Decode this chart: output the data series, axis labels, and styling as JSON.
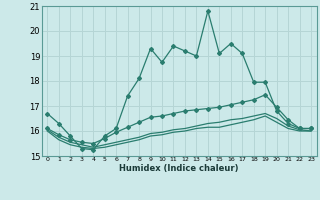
{
  "xlabel": "Humidex (Indice chaleur)",
  "xlim": [
    -0.5,
    23.5
  ],
  "ylim": [
    15,
    21
  ],
  "yticks": [
    15,
    16,
    17,
    18,
    19,
    20,
    21
  ],
  "xticks": [
    0,
    1,
    2,
    3,
    4,
    5,
    6,
    7,
    8,
    9,
    10,
    11,
    12,
    13,
    14,
    15,
    16,
    17,
    18,
    19,
    20,
    21,
    22,
    23
  ],
  "background_color": "#cce9e9",
  "grid_color": "#b5d5d5",
  "line_color": "#2a7d6f",
  "line1": [
    16.7,
    16.3,
    15.8,
    15.3,
    15.25,
    15.8,
    16.1,
    17.4,
    18.1,
    19.3,
    18.75,
    19.4,
    19.2,
    19.0,
    20.8,
    19.1,
    19.5,
    19.1,
    17.95,
    17.95,
    16.8,
    16.3,
    16.1,
    16.1
  ],
  "line2": [
    16.1,
    15.85,
    15.65,
    15.55,
    15.5,
    15.7,
    15.95,
    16.15,
    16.35,
    16.55,
    16.6,
    16.7,
    16.8,
    16.85,
    16.9,
    16.95,
    17.05,
    17.15,
    17.25,
    17.45,
    16.95,
    16.45,
    16.1,
    16.1
  ],
  "line3": [
    16.05,
    15.75,
    15.55,
    15.45,
    15.35,
    15.45,
    15.55,
    15.65,
    15.75,
    15.9,
    15.95,
    16.05,
    16.1,
    16.2,
    16.3,
    16.35,
    16.45,
    16.5,
    16.6,
    16.7,
    16.5,
    16.2,
    16.05,
    16.0
  ],
  "line4": [
    16.0,
    15.65,
    15.45,
    15.35,
    15.3,
    15.35,
    15.45,
    15.55,
    15.65,
    15.8,
    15.85,
    15.95,
    16.0,
    16.1,
    16.15,
    16.15,
    16.25,
    16.35,
    16.45,
    16.6,
    16.35,
    16.1,
    16.0,
    16.0
  ]
}
